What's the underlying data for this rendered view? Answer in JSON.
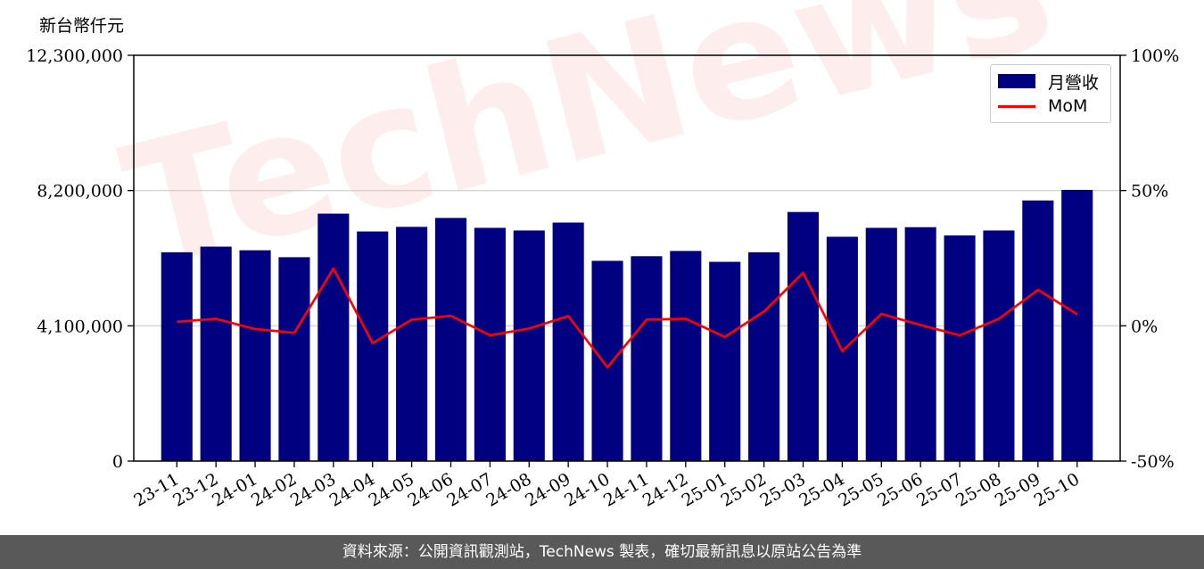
{
  "chart_data": {
    "type": "bar",
    "ylabel": "新台幣仟元",
    "categories": [
      "23-11",
      "23-12",
      "24-01",
      "24-02",
      "24-03",
      "24-04",
      "24-05",
      "24-06",
      "24-07",
      "24-08",
      "24-09",
      "24-10",
      "24-11",
      "24-12",
      "25-01",
      "25-02",
      "25-03",
      "25-04",
      "25-05",
      "25-06",
      "25-07",
      "25-08",
      "25-09",
      "25-10"
    ],
    "series": [
      {
        "name": "月營收",
        "type": "bar",
        "axis": "left",
        "values": [
          6330000,
          6500000,
          6390000,
          6180000,
          7500000,
          6960000,
          7100000,
          7370000,
          7070000,
          6990000,
          7230000,
          6070000,
          6210000,
          6370000,
          6040000,
          6330000,
          7550000,
          6800000,
          7070000,
          7090000,
          6840000,
          6990000,
          7900000,
          8220000
        ]
      },
      {
        "name": "MoM",
        "type": "line",
        "axis": "right",
        "values": [
          1.5,
          2.6,
          -1.2,
          -2.6,
          21.2,
          -6.4,
          2.3,
          3.7,
          -3.5,
          -1.0,
          3.6,
          -15.3,
          2.3,
          2.6,
          -4.1,
          5.3,
          19.6,
          -9.3,
          4.4,
          0.3,
          -3.5,
          2.6,
          13.3,
          4.3
        ]
      }
    ],
    "ylim_left": [
      0,
      12300000
    ],
    "yticks_left": [
      "0",
      "4,100,000",
      "8,200,000",
      "12,300,000"
    ],
    "ylim_right": [
      -50,
      100
    ],
    "yticks_right": [
      "-50%",
      "0%",
      "50%",
      "100%"
    ],
    "legend_position": "top-right",
    "grid": "horizontal",
    "colors": {
      "bar": "#000080",
      "line": "#ff0000"
    }
  },
  "watermark": "TechNews",
  "footer": "資料來源：公開資訊觀測站，TechNews 製表，確切最新訊息以原站公告為準"
}
